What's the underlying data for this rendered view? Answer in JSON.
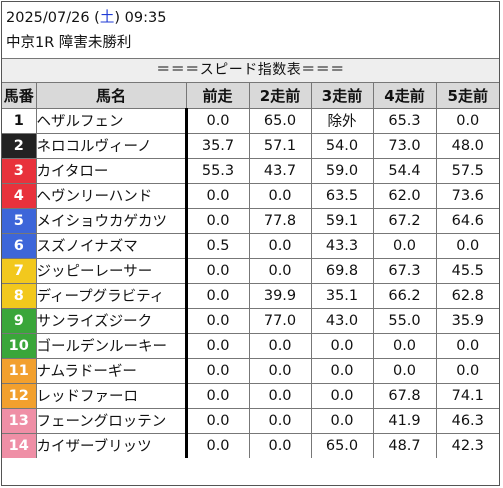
{
  "header": {
    "date": "2025/07/26",
    "weekday": "土",
    "time": "09:35",
    "race": "中京1R 障害未勝利"
  },
  "banner": "＝＝＝スピード指数表＝＝＝",
  "columns": [
    "馬番",
    "馬名",
    "前走",
    "2走前",
    "3走前",
    "4走前",
    "5走前"
  ],
  "waku_colors": {
    "1": {
      "bg": "#ffffff",
      "fg": "#111111"
    },
    "2": {
      "bg": "#222222",
      "fg": "#ffffff"
    },
    "3": {
      "bg": "#e8323c",
      "fg": "#ffffff"
    },
    "4": {
      "bg": "#e8323c",
      "fg": "#ffffff"
    },
    "5": {
      "bg": "#3d66d9",
      "fg": "#ffffff"
    },
    "6": {
      "bg": "#3d66d9",
      "fg": "#ffffff"
    },
    "7": {
      "bg": "#f2c81d",
      "fg": "#ffffff"
    },
    "8": {
      "bg": "#f2c81d",
      "fg": "#ffffff"
    },
    "9": {
      "bg": "#3aa63a",
      "fg": "#ffffff"
    },
    "10": {
      "bg": "#3aa63a",
      "fg": "#ffffff"
    },
    "11": {
      "bg": "#f2a02e",
      "fg": "#ffffff"
    },
    "12": {
      "bg": "#f2a02e",
      "fg": "#ffffff"
    },
    "13": {
      "bg": "#ef8fa6",
      "fg": "#ffffff"
    },
    "14": {
      "bg": "#ef8fa6",
      "fg": "#ffffff"
    }
  },
  "rows": [
    {
      "num": "1",
      "name": "ヘザルフェン",
      "v": [
        "0.0",
        "65.0",
        "除外",
        "65.3",
        "0.0"
      ]
    },
    {
      "num": "2",
      "name": "ネロコルヴィーノ",
      "v": [
        "35.7",
        "57.1",
        "54.0",
        "73.0",
        "48.0"
      ]
    },
    {
      "num": "3",
      "name": "カイタロー",
      "v": [
        "55.3",
        "43.7",
        "59.0",
        "54.4",
        "57.5"
      ]
    },
    {
      "num": "4",
      "name": "ヘヴンリーハンド",
      "v": [
        "0.0",
        "0.0",
        "63.5",
        "62.0",
        "73.6"
      ]
    },
    {
      "num": "5",
      "name": "メイショウカゲカツ",
      "v": [
        "0.0",
        "77.8",
        "59.1",
        "67.2",
        "64.6"
      ]
    },
    {
      "num": "6",
      "name": "スズノイナズマ",
      "v": [
        "0.5",
        "0.0",
        "43.3",
        "0.0",
        "0.0"
      ]
    },
    {
      "num": "7",
      "name": "ジッピーレーサー",
      "v": [
        "0.0",
        "0.0",
        "69.8",
        "67.3",
        "45.5"
      ]
    },
    {
      "num": "8",
      "name": "ディープグラビティ",
      "v": [
        "0.0",
        "39.9",
        "35.1",
        "66.2",
        "62.8"
      ]
    },
    {
      "num": "9",
      "name": "サンライズジーク",
      "v": [
        "0.0",
        "77.0",
        "43.0",
        "55.0",
        "35.9"
      ]
    },
    {
      "num": "10",
      "name": "ゴールデンルーキー",
      "v": [
        "0.0",
        "0.0",
        "0.0",
        "0.0",
        "0.0"
      ]
    },
    {
      "num": "11",
      "name": "ナムラドーギー",
      "v": [
        "0.0",
        "0.0",
        "0.0",
        "0.0",
        "0.0"
      ]
    },
    {
      "num": "12",
      "name": "レッドファーロ",
      "v": [
        "0.0",
        "0.0",
        "0.0",
        "67.8",
        "74.1"
      ]
    },
    {
      "num": "13",
      "name": "フェーングロッテン",
      "v": [
        "0.0",
        "0.0",
        "0.0",
        "41.9",
        "46.3"
      ]
    },
    {
      "num": "14",
      "name": "カイザーブリッツ",
      "v": [
        "0.0",
        "0.0",
        "65.0",
        "48.7",
        "42.3"
      ]
    }
  ]
}
